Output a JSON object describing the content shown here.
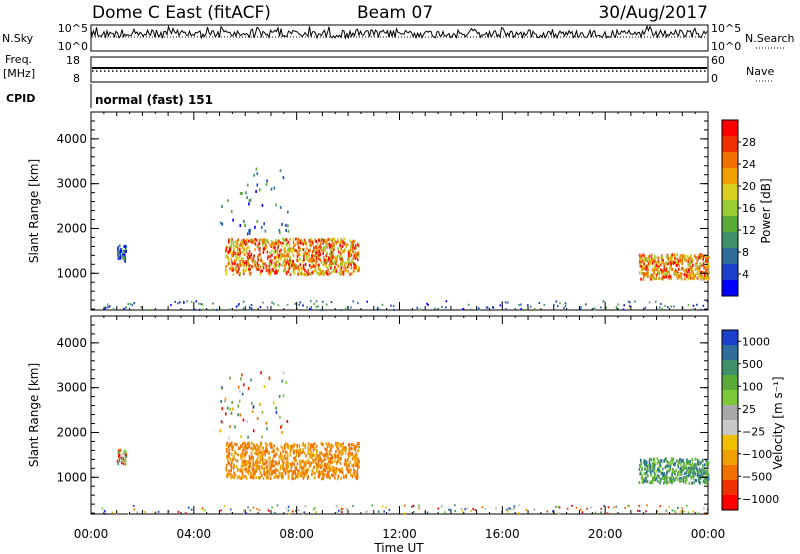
{
  "header": {
    "title": "Dome C East (fitACF)",
    "beam": "Beam 07",
    "date": "30/Aug/2017"
  },
  "chart_data": [
    {
      "type": "line",
      "name_left": "N.Sky",
      "name_right": "N.Search",
      "ytick_left": [
        "10^5",
        "10^0"
      ],
      "ytick_right": [
        "10^5",
        "10^0"
      ]
    },
    {
      "type": "line",
      "label_left": [
        "Freq.",
        "[MHz]"
      ],
      "label_right": "Nave",
      "ytick_left": [
        "18",
        "8"
      ],
      "ytick_right": [
        "60",
        "0"
      ]
    },
    {
      "type": "table",
      "label": "CPID",
      "value": "normal (fast) 151"
    },
    {
      "type": "heatmap",
      "ylabel": "Slant Range [km]",
      "xlabel": "Time UT",
      "yticks": [
        1000,
        2000,
        3000,
        4000
      ],
      "ylim": [
        180,
        4600
      ],
      "xticks": [
        "00:00",
        "04:00",
        "08:00",
        "12:00",
        "16:00",
        "20:00",
        "00:00"
      ],
      "xlim": [
        0,
        24
      ],
      "colorbar": {
        "label": "Power [dB]",
        "ticks": [
          "4",
          "8",
          "12",
          "16",
          "20",
          "24",
          "28"
        ],
        "colors": [
          "#0000ff",
          "#1a3fc8",
          "#2e6e9a",
          "#3f8f6a",
          "#5aaa3a",
          "#9acd32",
          "#d8d020",
          "#f0a000",
          "#f07000",
          "#f03000",
          "#ff0000"
        ]
      },
      "clusters": [
        {
          "t0": 1.0,
          "t1": 1.35,
          "r0": 1300,
          "r1": 1650
        },
        {
          "t0": 5.2,
          "t1": 10.4,
          "r0": 1000,
          "r1": 1800
        },
        {
          "t0": 5.0,
          "t1": 7.7,
          "r0": 1900,
          "r1": 3400
        },
        {
          "t0": 21.3,
          "t1": 24.0,
          "r0": 900,
          "r1": 1450
        },
        {
          "t0": 0.4,
          "t1": 24.0,
          "r0": 200,
          "r1": 400
        }
      ]
    },
    {
      "type": "heatmap",
      "ylabel": "Slant Range [km]",
      "xlabel": "Time UT",
      "yticks": [
        1000,
        2000,
        3000,
        4000
      ],
      "ylim": [
        180,
        4600
      ],
      "xticks": [
        "00:00",
        "04:00",
        "08:00",
        "12:00",
        "16:00",
        "20:00",
        "00:00"
      ],
      "xlim": [
        0,
        24
      ],
      "colorbar": {
        "label": "Velocity [m s⁻¹]",
        "ticks": [
          "1000",
          "500",
          "100",
          "25",
          "−25",
          "−100",
          "−500",
          "−1000"
        ],
        "colors": [
          "#1a3fc8",
          "#2e6e9a",
          "#3f8f6a",
          "#5aaa3a",
          "#7bc83a",
          "#a8a8a8",
          "#c8c8c8",
          "#f0c000",
          "#f0a000",
          "#f07000",
          "#f03000",
          "#ff0000"
        ]
      },
      "clusters": [
        {
          "t0": 1.0,
          "t1": 1.35,
          "r0": 1300,
          "r1": 1650
        },
        {
          "t0": 5.2,
          "t1": 10.4,
          "r0": 1000,
          "r1": 1800
        },
        {
          "t0": 5.0,
          "t1": 7.7,
          "r0": 1900,
          "r1": 3400
        },
        {
          "t0": 21.3,
          "t1": 24.0,
          "r0": 900,
          "r1": 1450
        },
        {
          "t0": 0.4,
          "t1": 24.0,
          "r0": 200,
          "r1": 400
        }
      ]
    }
  ]
}
